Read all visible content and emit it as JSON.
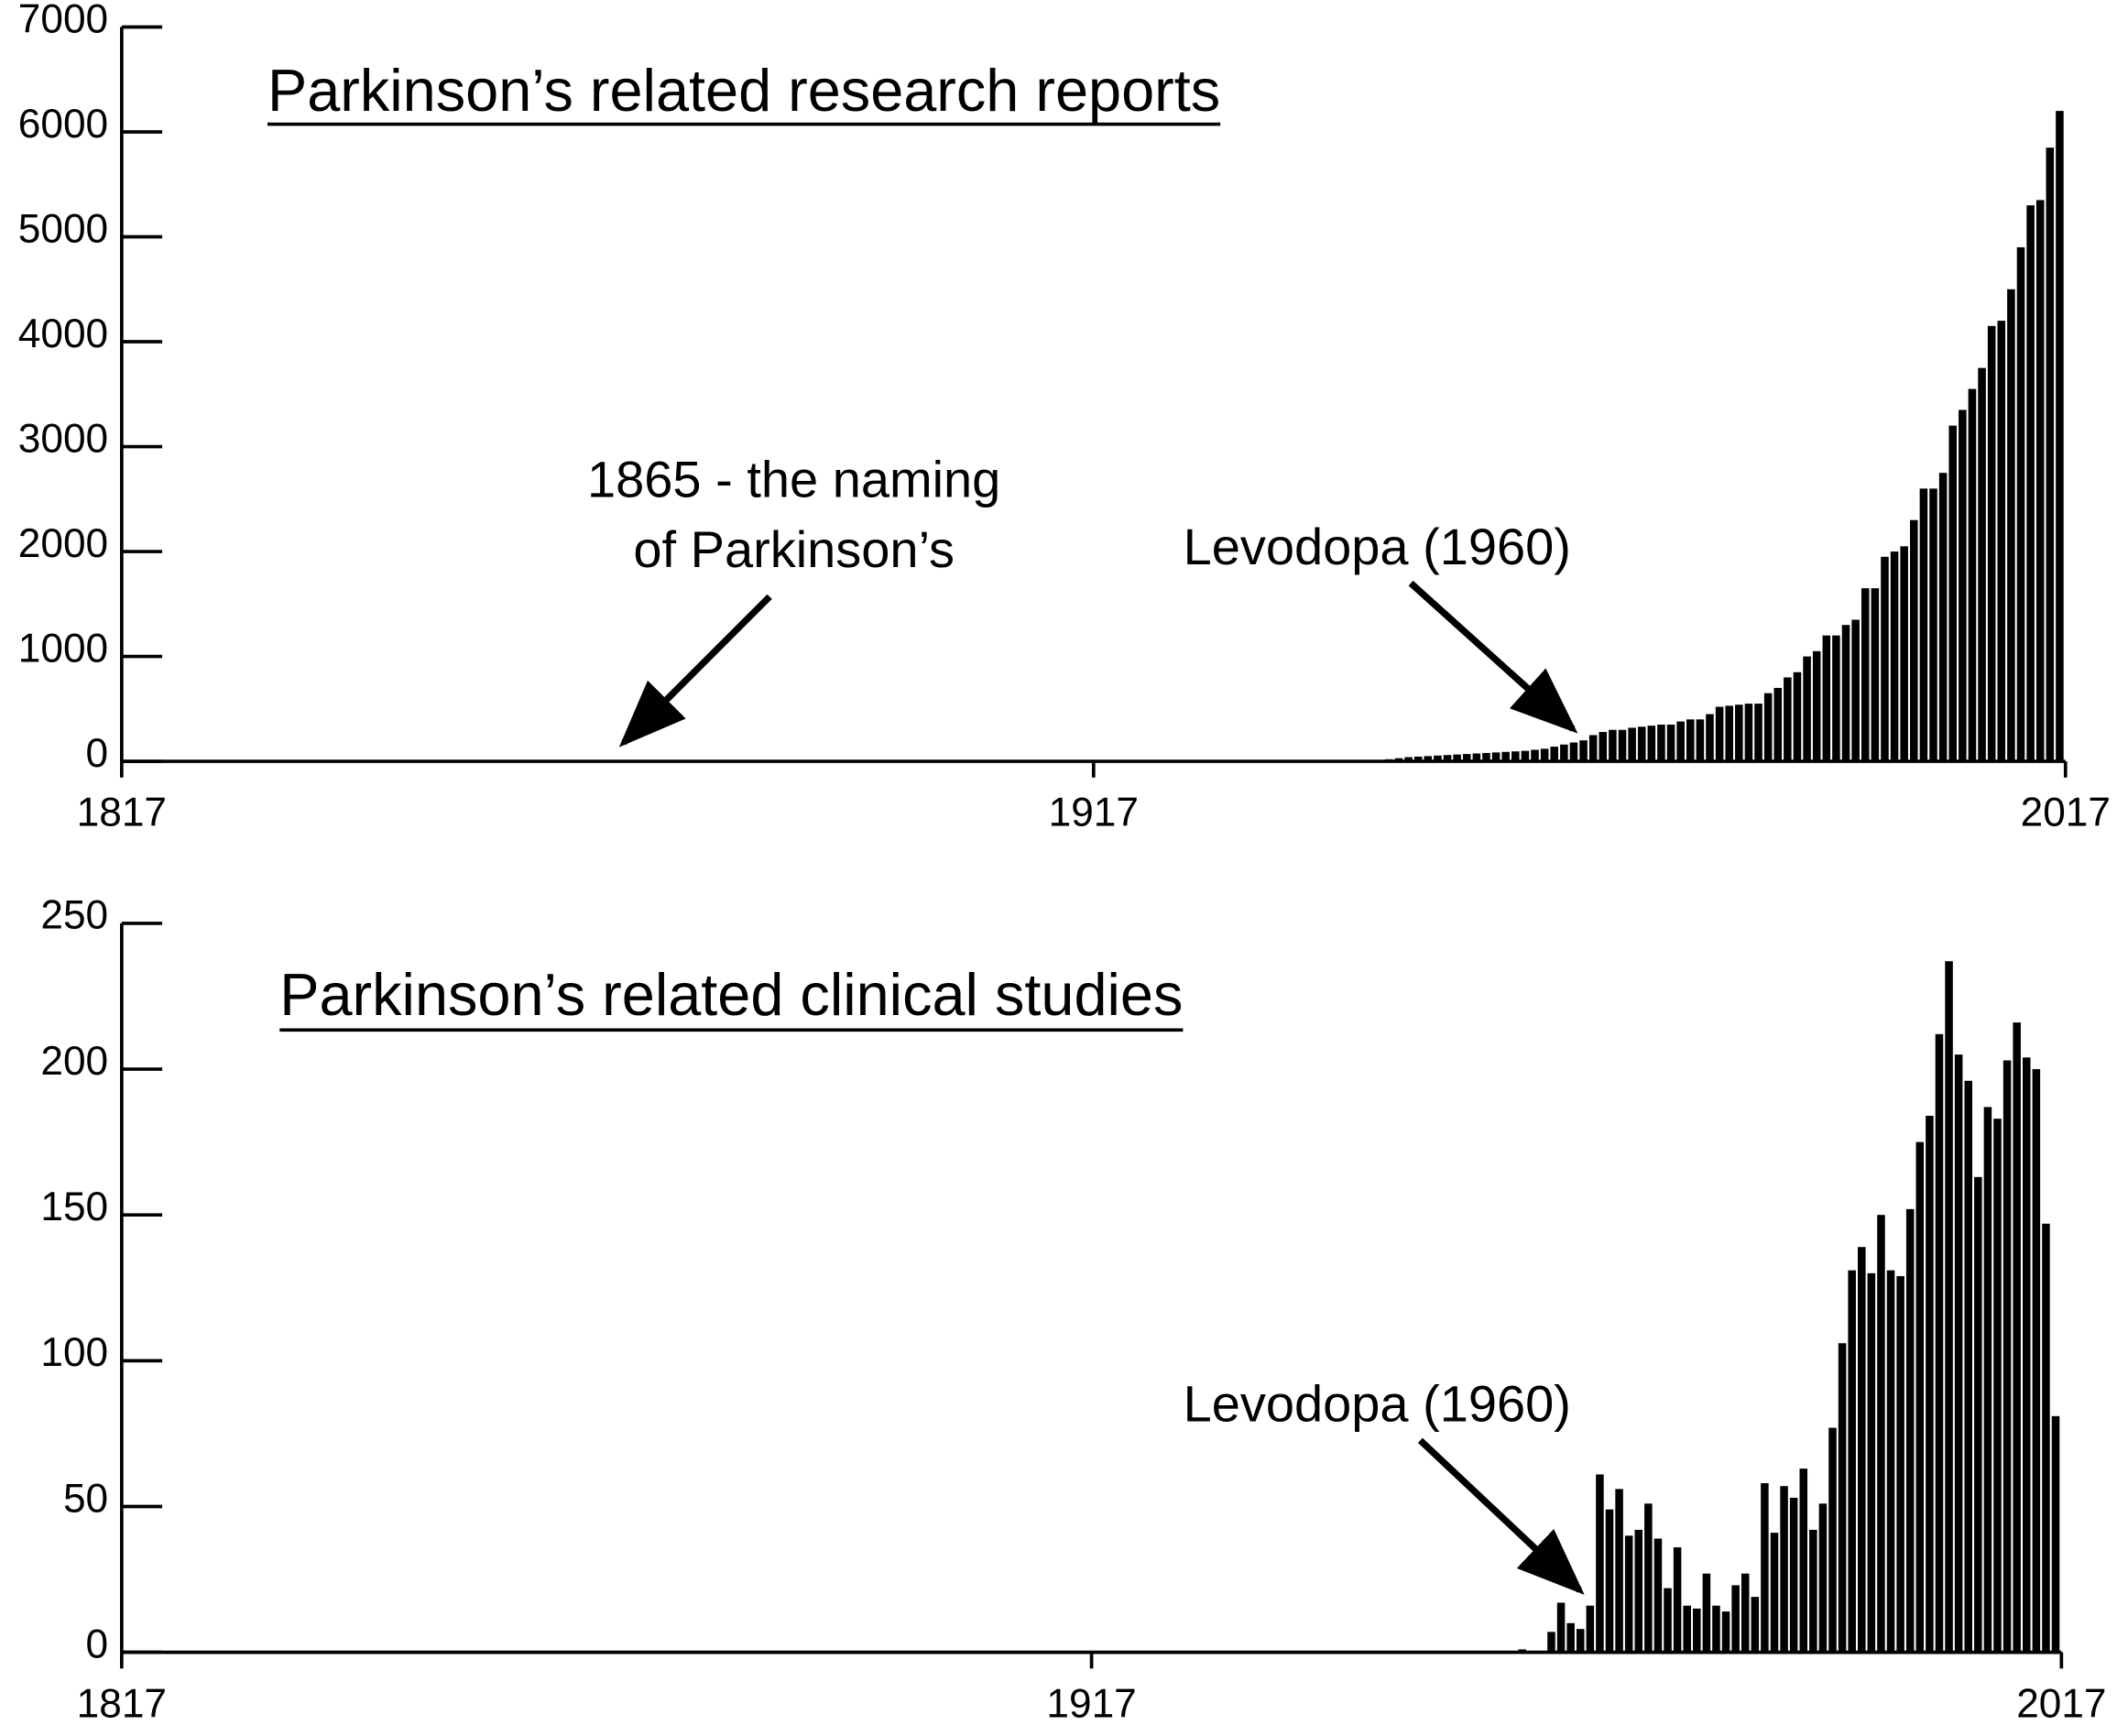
{
  "chart_data": [
    {
      "type": "bar",
      "title": "Parkinson’s related research reports",
      "color": "#000000",
      "xlim": [
        1817,
        2017
      ],
      "xticks": [
        1817,
        1917,
        2017
      ],
      "ylim": [
        0,
        7000
      ],
      "yticks": [
        0,
        1000,
        2000,
        3000,
        4000,
        5000,
        6000,
        7000
      ],
      "annotations": [
        {
          "lines": [
            "1865 - the naming",
            "of Parkinson’s"
          ]
        },
        {
          "lines": [
            "Levodopa (1960)"
          ]
        }
      ],
      "x": [
        1946,
        1947,
        1948,
        1949,
        1950,
        1951,
        1952,
        1953,
        1954,
        1955,
        1956,
        1957,
        1958,
        1959,
        1960,
        1961,
        1962,
        1963,
        1964,
        1965,
        1966,
        1967,
        1968,
        1969,
        1970,
        1971,
        1972,
        1973,
        1974,
        1975,
        1976,
        1977,
        1978,
        1979,
        1980,
        1981,
        1982,
        1983,
        1984,
        1985,
        1986,
        1987,
        1988,
        1989,
        1990,
        1991,
        1992,
        1993,
        1994,
        1995,
        1996,
        1997,
        1998,
        1999,
        2000,
        2001,
        2002,
        2003,
        2004,
        2005,
        2006,
        2007,
        2008,
        2009,
        2010,
        2011,
        2012,
        2013,
        2014,
        2015,
        2016
      ],
      "values": [
        10,
        20,
        30,
        40,
        45,
        50,
        55,
        60,
        65,
        70,
        75,
        80,
        85,
        90,
        95,
        100,
        110,
        120,
        140,
        160,
        180,
        200,
        250,
        280,
        300,
        300,
        320,
        330,
        340,
        350,
        350,
        380,
        400,
        400,
        450,
        520,
        530,
        540,
        550,
        550,
        650,
        700,
        800,
        850,
        1000,
        1050,
        1200,
        1200,
        1300,
        1350,
        1650,
        1650,
        1950,
        2000,
        2050,
        2300,
        2600,
        2600,
        2750,
        3200,
        3350,
        3550,
        3750,
        4150,
        4200,
        4500,
        4900,
        5300,
        5350,
        5850,
        6200
      ]
    },
    {
      "type": "bar",
      "title": "Parkinson’s related clinical studies",
      "color": "#000000",
      "xlim": [
        1817,
        2017
      ],
      "xticks": [
        1817,
        1917,
        2017
      ],
      "ylim": [
        0,
        250
      ],
      "yticks": [
        0,
        50,
        100,
        150,
        200,
        250
      ],
      "annotations": [
        {
          "lines": [
            "Levodopa (1960)"
          ]
        }
      ],
      "x": [
        1961,
        1962,
        1963,
        1964,
        1965,
        1966,
        1967,
        1968,
        1969,
        1970,
        1971,
        1972,
        1973,
        1974,
        1975,
        1976,
        1977,
        1978,
        1979,
        1980,
        1981,
        1982,
        1983,
        1984,
        1985,
        1986,
        1987,
        1988,
        1989,
        1990,
        1991,
        1992,
        1993,
        1994,
        1995,
        1996,
        1997,
        1998,
        1999,
        2000,
        2001,
        2002,
        2003,
        2004,
        2005,
        2006,
        2007,
        2008,
        2009,
        2010,
        2011,
        2012,
        2013,
        2014,
        2015,
        2016
      ],
      "values": [
        1,
        0,
        0,
        7,
        17,
        10,
        8,
        16,
        61,
        49,
        56,
        40,
        42,
        51,
        39,
        22,
        36,
        16,
        15,
        27,
        16,
        14,
        23,
        27,
        19,
        58,
        41,
        57,
        53,
        63,
        42,
        51,
        77,
        106,
        131,
        139,
        130,
        150,
        131,
        129,
        152,
        175,
        184,
        212,
        237,
        205,
        196,
        163,
        187,
        183,
        203,
        216,
        204,
        200,
        147,
        81
      ]
    }
  ]
}
